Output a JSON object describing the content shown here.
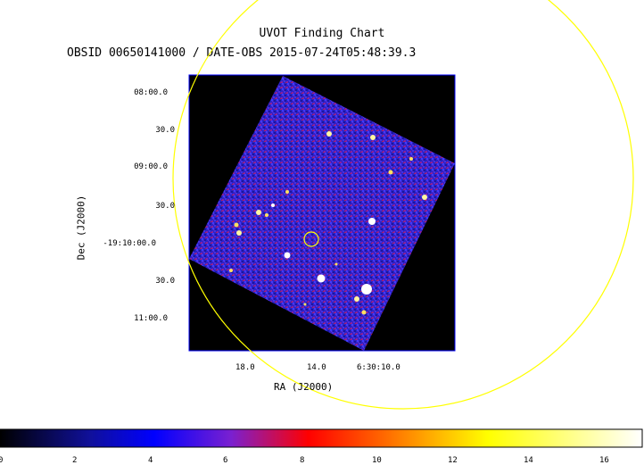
{
  "header": {
    "title": "UVOT Finding Chart",
    "subtitle": "OBSID 00650141000 / DATE-OBS 2015-07-24T05:48:39.3"
  },
  "axes": {
    "dec_label": "Dec (J2000)",
    "ra_label": "RA (J2000)",
    "dec_ticks": [
      "08:00.0",
      "30.0",
      "09:00.0",
      "30.0",
      "-19:10:00.0",
      "30.0",
      "11:00.0"
    ],
    "ra_ticks": [
      "18.0",
      "14.0",
      "6:30:10.0"
    ]
  },
  "colorbar": {
    "ticks": [
      "0",
      "2",
      "4",
      "6",
      "8",
      "10",
      "12",
      "14",
      "16"
    ],
    "range": [
      0,
      17
    ],
    "colormap": [
      "#000000",
      "#0000ff",
      "#ff0000",
      "#ffff00",
      "#ffffff"
    ]
  },
  "colors": {
    "field_background": "#000000",
    "image_base": "#2a1fc8",
    "overlay_circle": "#ffff00",
    "frame": "#0000ff"
  }
}
